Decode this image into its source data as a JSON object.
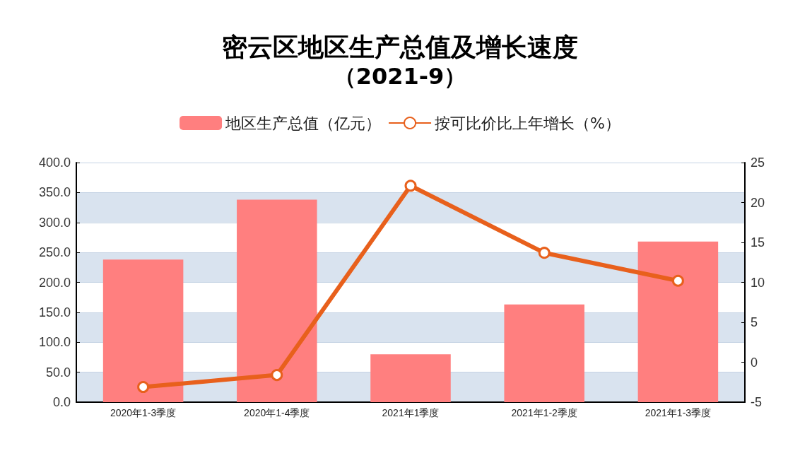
{
  "chart_data": {
    "type": "bar",
    "title": "密云区地区生产总值及增长速度",
    "subtitle": "（2021-9）",
    "categories": [
      "2020年1-3季度",
      "2020年1-4季度",
      "2021年1季度",
      "2021年1-2季度",
      "2021年1-3季度"
    ],
    "series": [
      {
        "name": "地区生产总值（亿元）",
        "color": "#ff7f7f",
        "values": [
          238,
          338,
          80,
          163,
          268
        ]
      },
      {
        "name": "按可比价比上年增长（%）",
        "type": "line",
        "axis": "y2",
        "color": "#e8601c",
        "values": [
          -3.1,
          -1.6,
          22.1,
          13.7,
          10.2
        ]
      }
    ],
    "ylim": [
      0,
      400
    ],
    "yticks": [
      {
        "value": 0,
        "label": "0.0"
      },
      {
        "value": 50,
        "label": "50.0"
      },
      {
        "value": 100,
        "label": "100.0"
      },
      {
        "value": 150,
        "label": "150.0"
      },
      {
        "value": 200,
        "label": "200.0"
      },
      {
        "value": 250,
        "label": "250.0"
      },
      {
        "value": 300,
        "label": "300.0"
      },
      {
        "value": 350,
        "label": "350.0"
      },
      {
        "value": 400,
        "label": "400.0"
      }
    ],
    "y2lim": [
      -5,
      25
    ],
    "y2ticks": [
      -5,
      0,
      5,
      10,
      15,
      20,
      25
    ],
    "grid": "y",
    "legend": "top",
    "marker": "circle",
    "line_style": "solid"
  }
}
